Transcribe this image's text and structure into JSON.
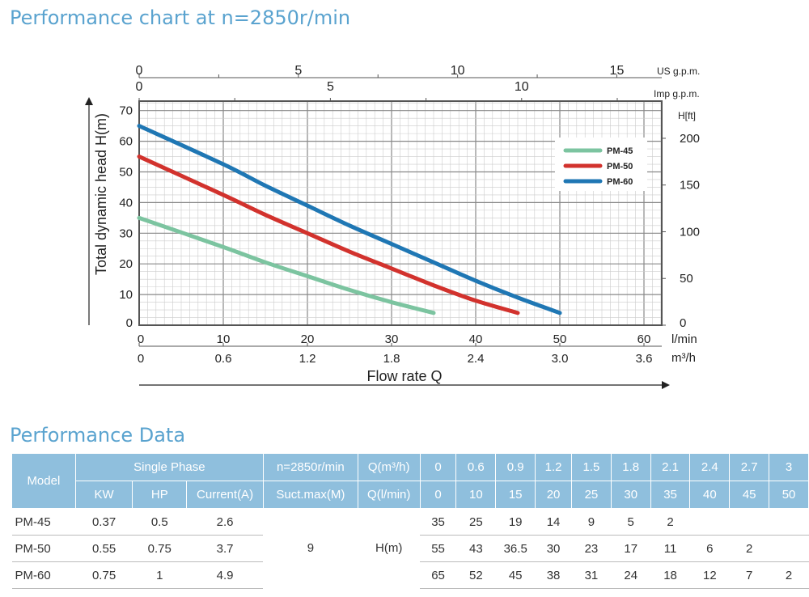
{
  "title": "Performance chart at n=2850r/min",
  "table_title": "Performance Data",
  "chart_data": {
    "type": "line",
    "title": "Performance chart at n=2850r/min",
    "xlabel": "Flow rate Q",
    "ylabel": "Total dynamic head H(m)",
    "x_unit": "l/min",
    "x2_unit": "m³/h",
    "top1_unit": "US g.p.m.",
    "top2_unit": "Imp g.p.m.",
    "y2_unit": "H[ft]",
    "xlim": [
      0,
      62
    ],
    "ylim": [
      0,
      70
    ],
    "x_ticks": [
      0,
      10,
      20,
      30,
      40,
      50,
      60
    ],
    "x2_ticks": [
      "0",
      "0.6",
      "1.2",
      "1.8",
      "2.4",
      "3.0",
      "3.6"
    ],
    "y_ticks": [
      0,
      10,
      20,
      30,
      40,
      50,
      60,
      70
    ],
    "y2_ticks": [
      0,
      50,
      100,
      150,
      200
    ],
    "us_ticks": [
      0,
      5,
      10,
      15
    ],
    "imp_ticks": [
      0,
      5,
      10
    ],
    "series": [
      {
        "name": "PM-45",
        "color": "#7cc4a0",
        "x": [
          0,
          10,
          15,
          20,
          25,
          30,
          35
        ],
        "y": [
          35,
          25.5,
          20.5,
          16,
          11.5,
          7.5,
          4
        ]
      },
      {
        "name": "PM-50",
        "color": "#d2322d",
        "x": [
          0,
          10,
          15,
          20,
          25,
          30,
          35,
          40,
          45
        ],
        "y": [
          55,
          42.5,
          36,
          30,
          24,
          18.5,
          13,
          8,
          4
        ]
      },
      {
        "name": "PM-60",
        "color": "#1f77b4",
        "x": [
          0,
          10,
          15,
          20,
          25,
          30,
          35,
          40,
          45,
          50
        ],
        "y": [
          65,
          52.5,
          45.5,
          39,
          32.5,
          26.5,
          20.5,
          14.5,
          9,
          4
        ]
      }
    ],
    "legend": "top-right"
  },
  "table": {
    "h_model": "Model",
    "h_single": "Single Phase",
    "h_speed": "n=2850r/min",
    "h_qm3": "Q(m³/h)",
    "h_kw": "KW",
    "h_hp": "HP",
    "h_cur": "Current(A)",
    "h_suct": "Suct.max(M)",
    "h_ql": "Q(l/min)",
    "qm3": [
      "0",
      "0.6",
      "0.9",
      "1.2",
      "1.5",
      "1.8",
      "2.1",
      "2.4",
      "2.7",
      "3"
    ],
    "ql": [
      "0",
      "10",
      "15",
      "20",
      "25",
      "30",
      "35",
      "40",
      "45",
      "50"
    ],
    "suct": "9",
    "hm": "H(m)",
    "rows": [
      {
        "model": "PM-45",
        "kw": "0.37",
        "hp": "0.5",
        "cur": "2.6",
        "h": [
          "35",
          "25",
          "19",
          "14",
          "9",
          "5",
          "2",
          "",
          "",
          ""
        ]
      },
      {
        "model": "PM-50",
        "kw": "0.55",
        "hp": "0.75",
        "cur": "3.7",
        "h": [
          "55",
          "43",
          "36.5",
          "30",
          "23",
          "17",
          "11",
          "6",
          "2",
          ""
        ]
      },
      {
        "model": "PM-60",
        "kw": "0.75",
        "hp": "1",
        "cur": "4.9",
        "h": [
          "65",
          "52",
          "45",
          "38",
          "31",
          "24",
          "18",
          "12",
          "7",
          "2"
        ]
      }
    ]
  }
}
